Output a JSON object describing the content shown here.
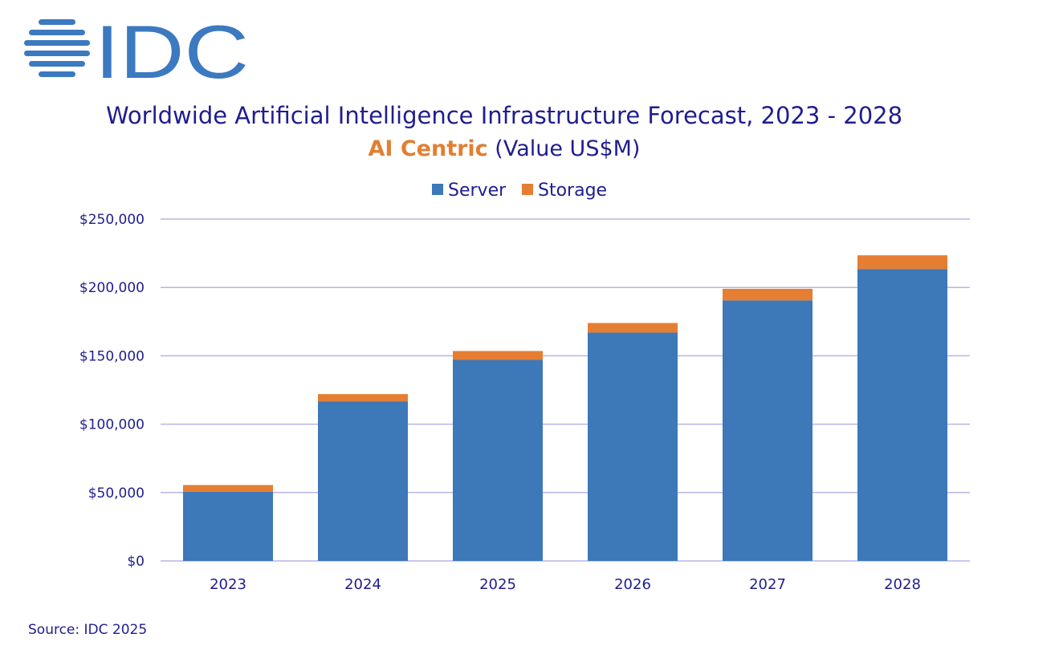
{
  "brand": {
    "logo_text": "IDC",
    "logo_color": "#3c79c0"
  },
  "header": {
    "title": "Worldwide Artificial Intelligence Infrastructure Forecast, 2023 - 2028",
    "subtitle_accent": "AI Centric",
    "subtitle_rest": "(Value US$M)"
  },
  "footer": {
    "source": "Source: IDC 2025"
  },
  "colors": {
    "text": "#1f1d8f",
    "accent": "#e07f35",
    "server": "#3d78b9",
    "storage": "#e57e32",
    "grid": "#b7b5e6"
  },
  "chart_data": {
    "type": "bar",
    "stacked": true,
    "title": "Worldwide Artificial Intelligence Infrastructure Forecast, 2023 - 2028",
    "subtitle": "AI Centric (Value US$M)",
    "categories": [
      "2023",
      "2024",
      "2025",
      "2026",
      "2027",
      "2028"
    ],
    "series": [
      {
        "name": "Server",
        "color": "#3d78b9",
        "values": [
          50500,
          116500,
          147000,
          167000,
          190500,
          213500
        ]
      },
      {
        "name": "Storage",
        "color": "#e57e32",
        "values": [
          5000,
          5500,
          6500,
          7000,
          8500,
          10000
        ]
      }
    ],
    "ylim": [
      0,
      250000
    ],
    "yticks": [
      0,
      50000,
      100000,
      150000,
      200000,
      250000
    ],
    "ytick_labels": [
      "$0",
      "$50,000",
      "$100,000",
      "$150,000",
      "$200,000",
      "$250,000"
    ],
    "xlabel": "",
    "ylabel": "",
    "grid": true,
    "legend_position": "top-center"
  }
}
